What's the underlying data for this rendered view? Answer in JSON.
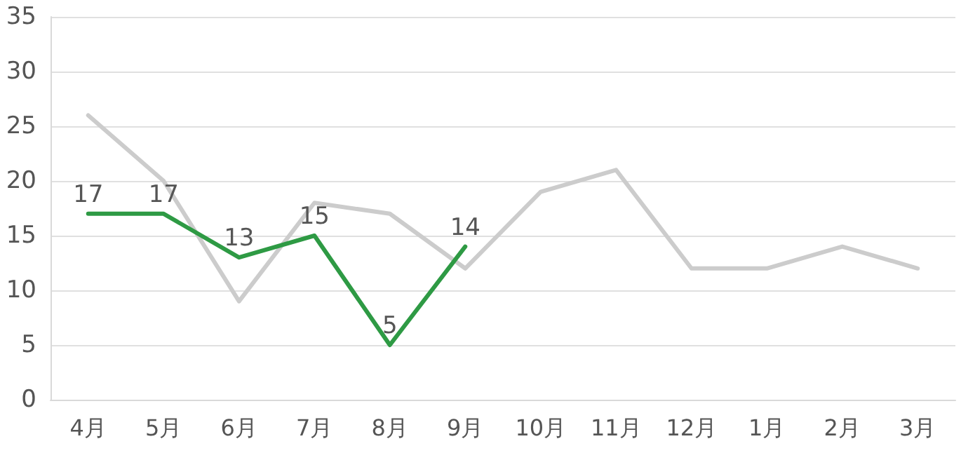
{
  "chart_data": {
    "type": "line",
    "categories": [
      "4月",
      "5月",
      "6月",
      "7月",
      "8月",
      "9月",
      "10月",
      "11月",
      "12月",
      "1月",
      "2月",
      "3月"
    ],
    "series": [
      {
        "color": "#cccccc",
        "values": [
          26,
          20,
          9,
          18,
          17,
          12,
          19,
          21,
          12,
          12,
          14,
          12
        ]
      },
      {
        "color": "#2e9a44",
        "values": [
          17,
          17,
          13,
          15,
          5,
          14,
          null,
          null,
          null,
          null,
          null,
          null
        ],
        "value_labels": [
          "17",
          "17",
          "13",
          "15",
          "5",
          "14",
          null,
          null,
          null,
          null,
          null,
          null
        ]
      }
    ],
    "ylim": [
      0,
      35
    ],
    "yticks": [
      0,
      5,
      10,
      15,
      20,
      25,
      30,
      35
    ],
    "grid": "y",
    "marker": "none",
    "line_style": "solid"
  }
}
